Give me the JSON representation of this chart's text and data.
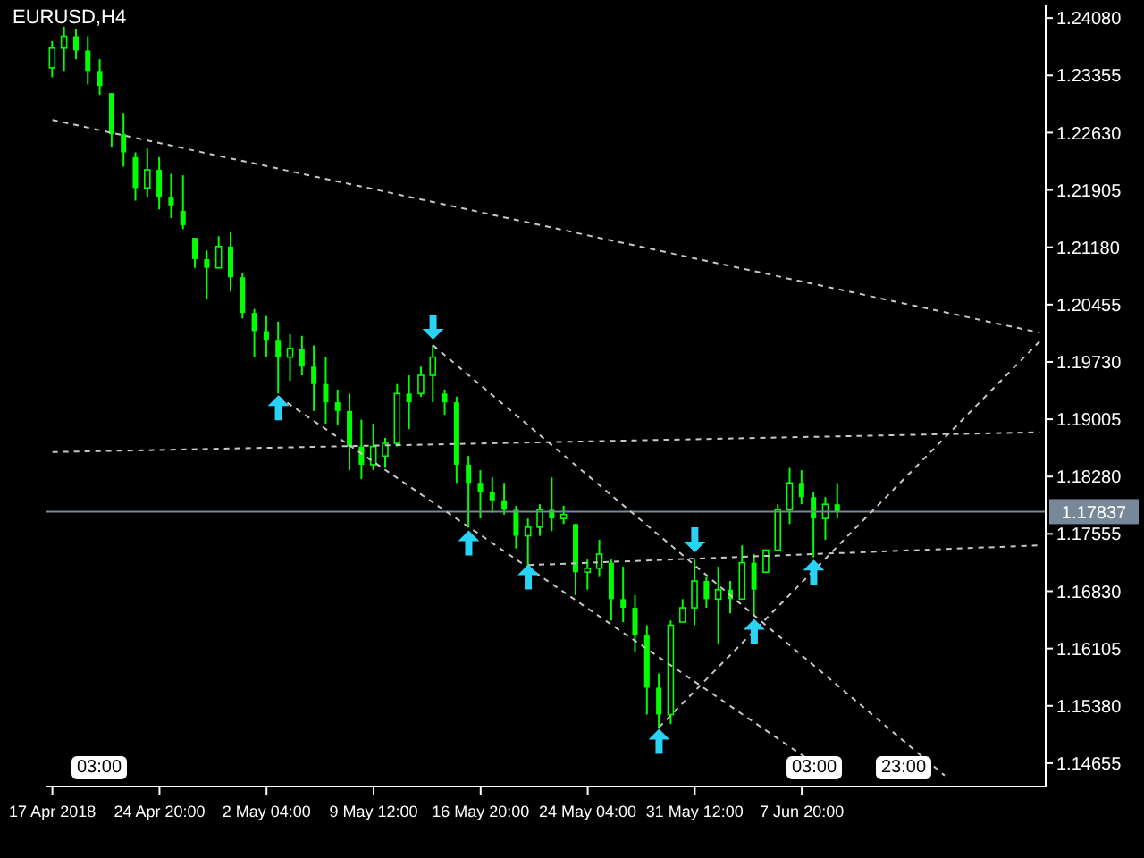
{
  "chart_data": {
    "type": "candlestick",
    "title": "EURUSD,H4",
    "color": "#00ff00",
    "categories": [
      "17 Apr 2018",
      null,
      null,
      null,
      null,
      null,
      null,
      null,
      null,
      "24 Apr 20:00",
      null,
      null,
      null,
      null,
      null,
      null,
      null,
      null,
      "2 May 04:00",
      null,
      null,
      null,
      null,
      null,
      null,
      null,
      null,
      "9 May 12:00",
      null,
      null,
      null,
      null,
      null,
      null,
      null,
      null,
      "16 May 20:00",
      null,
      null,
      null,
      null,
      null,
      null,
      null,
      null,
      "24 May 04:00",
      null,
      null,
      null,
      null,
      null,
      null,
      null,
      null,
      "31 May 12:00",
      null,
      null,
      null,
      null,
      null,
      null,
      null,
      null,
      "7 Jun 20:00",
      null,
      null,
      null,
      null,
      null,
      null,
      null,
      null,
      null,
      null,
      null,
      null,
      null,
      null,
      null,
      null,
      null,
      null,
      null,
      null
    ],
    "ohlc": [
      [
        1.2345,
        1.2379,
        1.2333,
        1.237
      ],
      [
        1.237,
        1.2397,
        1.234,
        1.2385
      ],
      [
        1.2385,
        1.2394,
        1.2356,
        1.2367
      ],
      [
        1.2367,
        1.2385,
        1.2324,
        1.234
      ],
      [
        1.234,
        1.2356,
        1.2311,
        1.2322
      ],
      [
        1.2313,
        1.2313,
        1.2245,
        1.2261
      ],
      [
        1.2261,
        1.2288,
        1.222,
        1.2238
      ],
      [
        1.2232,
        1.2238,
        1.2177,
        1.2193
      ],
      [
        1.2193,
        1.2243,
        1.2182,
        1.2216
      ],
      [
        1.2216,
        1.2232,
        1.2166,
        1.2182
      ],
      [
        1.2182,
        1.2211,
        1.2155,
        1.2171
      ],
      [
        1.2164,
        1.2209,
        1.2141,
        1.2146
      ],
      [
        1.213,
        1.213,
        1.2092,
        1.2103
      ],
      [
        1.2103,
        1.2114,
        1.2053,
        1.2092
      ],
      [
        1.2092,
        1.2132,
        1.2092,
        1.2119
      ],
      [
        1.2119,
        1.2137,
        1.2062,
        1.208
      ],
      [
        1.208,
        1.2085,
        1.2028,
        1.2035
      ],
      [
        1.2035,
        1.204,
        1.1979,
        1.2012
      ],
      [
        1.2012,
        1.2031,
        1.1979,
        1.2001
      ],
      [
        1.2001,
        1.2024,
        1.1933,
        1.1979
      ],
      [
        1.1979,
        1.2008,
        1.1949,
        1.199
      ],
      [
        1.199,
        1.2006,
        1.1956,
        1.1967
      ],
      [
        1.1967,
        1.1994,
        1.1911,
        1.1945
      ],
      [
        1.1945,
        1.1979,
        1.1895,
        1.1922
      ],
      [
        1.1922,
        1.1938,
        1.1893,
        1.1911
      ],
      [
        1.1911,
        1.1933,
        1.1836,
        1.1866
      ],
      [
        1.1866,
        1.19,
        1.1825,
        1.1843
      ],
      [
        1.1843,
        1.1895,
        1.1836,
        1.1866
      ],
      [
        1.1854,
        1.1877,
        1.1839,
        1.187
      ],
      [
        1.187,
        1.1945,
        1.1866,
        1.1933
      ],
      [
        1.1933,
        1.1956,
        1.1888,
        1.1922
      ],
      [
        1.1933,
        1.1967,
        1.1929,
        1.1956
      ],
      [
        1.1956,
        1.1994,
        1.1922,
        1.1979
      ],
      [
        1.1933,
        1.1938,
        1.1906,
        1.1922
      ],
      [
        1.1922,
        1.1929,
        1.182,
        1.1843
      ],
      [
        1.1843,
        1.1854,
        1.1764,
        1.182
      ],
      [
        1.182,
        1.1836,
        1.1775,
        1.1809
      ],
      [
        1.1809,
        1.1827,
        1.1782,
        1.1798
      ],
      [
        1.1798,
        1.182,
        1.178,
        1.1786
      ],
      [
        1.1786,
        1.1791,
        1.1737,
        1.1753
      ],
      [
        1.1753,
        1.1775,
        1.1714,
        1.1764
      ],
      [
        1.1764,
        1.1793,
        1.1753,
        1.1786
      ],
      [
        1.1786,
        1.1827,
        1.1759,
        1.1775
      ],
      [
        1.1775,
        1.1791,
        1.1768,
        1.178
      ],
      [
        1.1768,
        1.1768,
        1.1678,
        1.1707
      ],
      [
        1.1707,
        1.1723,
        1.1685,
        1.1712
      ],
      [
        1.1712,
        1.1748,
        1.1701,
        1.173
      ],
      [
        1.1719,
        1.1723,
        1.1646,
        1.1673
      ],
      [
        1.1673,
        1.1714,
        1.1644,
        1.1662
      ],
      [
        1.1662,
        1.1678,
        1.1606,
        1.1628
      ],
      [
        1.1628,
        1.164,
        1.1527,
        1.1561
      ],
      [
        1.1561,
        1.1579,
        1.1509,
        1.1527
      ],
      [
        1.1527,
        1.1646,
        1.1515,
        1.164
      ],
      [
        1.1644,
        1.1673,
        1.1644,
        1.1662
      ],
      [
        1.1662,
        1.1723,
        1.164,
        1.1696
      ],
      [
        1.1696,
        1.1701,
        1.1662,
        1.1673
      ],
      [
        1.1673,
        1.1714,
        1.1617,
        1.1685
      ],
      [
        1.1685,
        1.1696,
        1.1655,
        1.1673
      ],
      [
        1.1673,
        1.1741,
        1.1673,
        1.1719
      ],
      [
        1.1719,
        1.173,
        1.1651,
        1.1685
      ],
      [
        1.1707,
        1.1735,
        1.1707,
        1.1735
      ],
      [
        1.1735,
        1.1793,
        1.1735,
        1.1786
      ],
      [
        1.1786,
        1.1839,
        1.1768,
        1.182
      ],
      [
        1.182,
        1.1836,
        1.1793,
        1.1802
      ],
      [
        1.1802,
        1.1809,
        1.1726,
        1.1775
      ],
      [
        1.1775,
        1.1802,
        1.1748,
        1.1793
      ],
      [
        1.1793,
        1.182,
        1.1775,
        1.1784
      ],
      null,
      null,
      null,
      null,
      null,
      null,
      null,
      null,
      null,
      null,
      null,
      null,
      null,
      null,
      null,
      null,
      null
    ],
    "series": [
      {
        "type": "scatter",
        "color": "#29d3f5",
        "values": [
          null,
          null,
          null,
          null,
          null,
          null,
          null,
          null,
          null,
          null,
          null,
          null,
          null,
          null,
          null,
          null,
          null,
          null,
          null,
          1.1915,
          null,
          null,
          null,
          null,
          null,
          null,
          null,
          null,
          null,
          null,
          null,
          null,
          null,
          null,
          null,
          1.1744,
          null,
          null,
          null,
          null,
          1.1701,
          null,
          null,
          null,
          null,
          null,
          null,
          null,
          null,
          null,
          null,
          1.1493,
          null,
          null,
          null,
          null,
          null,
          null,
          null,
          1.1632,
          null,
          null,
          null,
          null,
          1.1707,
          null,
          null,
          null,
          null,
          null,
          null,
          null,
          null,
          null,
          null,
          null,
          null,
          null,
          null,
          null,
          null,
          null,
          null,
          null
        ]
      },
      {
        "type": "scatter",
        "color": "#29d3f5",
        "values": [
          null,
          null,
          null,
          null,
          null,
          null,
          null,
          null,
          null,
          null,
          null,
          null,
          null,
          null,
          null,
          null,
          null,
          null,
          null,
          null,
          null,
          null,
          null,
          null,
          null,
          null,
          null,
          null,
          null,
          null,
          null,
          null,
          1.2017,
          null,
          null,
          null,
          null,
          null,
          null,
          null,
          null,
          null,
          null,
          null,
          null,
          null,
          null,
          null,
          null,
          null,
          null,
          null,
          null,
          null,
          1.1748,
          null,
          null,
          null,
          null,
          null,
          null,
          null,
          null,
          null,
          null,
          null,
          null,
          null,
          null,
          null,
          null,
          null,
          null,
          null,
          null,
          null,
          null,
          null,
          null,
          null,
          null,
          null,
          null,
          null
        ]
      },
      {
        "type": "line",
        "color": "#c8c8c8",
        "line_style": "dashed",
        "values": [
          1.2279,
          null,
          null,
          null,
          null,
          null,
          null,
          null,
          null,
          null,
          null,
          null,
          null,
          null,
          null,
          null,
          null,
          null,
          null,
          null,
          null,
          null,
          null,
          null,
          null,
          null,
          null,
          null,
          null,
          null,
          null,
          null,
          null,
          null,
          null,
          null,
          null,
          null,
          null,
          null,
          null,
          null,
          null,
          null,
          null,
          null,
          null,
          null,
          null,
          null,
          null,
          null,
          null,
          null,
          null,
          null,
          null,
          null,
          null,
          null,
          null,
          null,
          null,
          null,
          null,
          null,
          null,
          null,
          null,
          null,
          null,
          null,
          null,
          null,
          null,
          null,
          null,
          null,
          null,
          null,
          null,
          null,
          null,
          1.201
        ]
      },
      {
        "type": "line",
        "color": "#c8c8c8",
        "line_style": "dashed",
        "values": [
          1.1859,
          null,
          null,
          null,
          null,
          null,
          null,
          null,
          null,
          null,
          null,
          null,
          null,
          null,
          null,
          null,
          null,
          null,
          null,
          null,
          null,
          null,
          null,
          null,
          null,
          null,
          null,
          null,
          null,
          null,
          null,
          null,
          null,
          null,
          null,
          null,
          null,
          null,
          null,
          null,
          null,
          null,
          null,
          null,
          null,
          null,
          null,
          null,
          null,
          null,
          null,
          null,
          null,
          null,
          null,
          null,
          null,
          null,
          null,
          null,
          null,
          null,
          null,
          null,
          null,
          null,
          null,
          null,
          null,
          null,
          null,
          null,
          null,
          null,
          null,
          null,
          null,
          null,
          null,
          null,
          null,
          null,
          null,
          1.1884
        ]
      },
      {
        "type": "line",
        "color": "#c8c8c8",
        "line_style": "dashed",
        "values": [
          null,
          null,
          null,
          null,
          null,
          null,
          null,
          null,
          null,
          null,
          null,
          null,
          null,
          null,
          null,
          null,
          null,
          null,
          null,
          1.1929,
          null,
          null,
          null,
          null,
          null,
          null,
          null,
          null,
          null,
          null,
          null,
          null,
          null,
          null,
          null,
          null,
          null,
          null,
          null,
          null,
          null,
          null,
          null,
          null,
          null,
          null,
          null,
          null,
          null,
          null,
          null,
          null,
          null,
          null,
          null,
          null,
          null,
          null,
          null,
          null,
          null,
          null,
          null,
          null,
          null,
          null,
          1.1445,
          null,
          null,
          null,
          null,
          null,
          null,
          null,
          null,
          null,
          null,
          null,
          null,
          null,
          null,
          null,
          null,
          null
        ]
      },
      {
        "type": "line",
        "color": "#c8c8c8",
        "line_style": "dashed",
        "values": [
          null,
          null,
          null,
          null,
          null,
          null,
          null,
          null,
          null,
          null,
          null,
          null,
          null,
          null,
          null,
          null,
          null,
          null,
          null,
          null,
          null,
          null,
          null,
          null,
          null,
          null,
          null,
          null,
          null,
          null,
          null,
          null,
          1.1994,
          null,
          null,
          null,
          null,
          null,
          null,
          null,
          null,
          null,
          null,
          null,
          null,
          null,
          null,
          null,
          null,
          null,
          null,
          null,
          null,
          null,
          null,
          null,
          null,
          null,
          null,
          null,
          null,
          null,
          null,
          null,
          null,
          null,
          null,
          null,
          null,
          null,
          null,
          null,
          null,
          null,
          null,
          1.145,
          null,
          null,
          null,
          null,
          null,
          null,
          null,
          null
        ]
      },
      {
        "type": "line",
        "color": "#c8c8c8",
        "line_style": "dashed",
        "values": [
          null,
          null,
          null,
          null,
          null,
          null,
          null,
          null,
          null,
          null,
          null,
          null,
          null,
          null,
          null,
          null,
          null,
          null,
          null,
          null,
          null,
          null,
          null,
          null,
          null,
          null,
          null,
          null,
          null,
          null,
          null,
          null,
          null,
          null,
          null,
          null,
          null,
          null,
          null,
          null,
          1.1716,
          null,
          null,
          null,
          null,
          null,
          null,
          null,
          null,
          null,
          null,
          null,
          null,
          null,
          null,
          null,
          null,
          null,
          null,
          null,
          null,
          null,
          null,
          null,
          null,
          null,
          null,
          null,
          null,
          null,
          null,
          null,
          null,
          null,
          null,
          null,
          null,
          null,
          null,
          null,
          null,
          null,
          null,
          1.1741
        ]
      },
      {
        "type": "line",
        "color": "#c8c8c8",
        "line_style": "dashed",
        "values": [
          null,
          null,
          null,
          null,
          null,
          null,
          null,
          null,
          null,
          null,
          null,
          null,
          null,
          null,
          null,
          null,
          null,
          null,
          null,
          null,
          null,
          null,
          null,
          null,
          null,
          null,
          null,
          null,
          null,
          null,
          null,
          null,
          null,
          null,
          null,
          null,
          null,
          null,
          null,
          null,
          null,
          null,
          null,
          null,
          null,
          null,
          null,
          null,
          null,
          null,
          null,
          1.1511,
          null,
          null,
          null,
          null,
          null,
          null,
          null,
          null,
          null,
          null,
          null,
          null,
          null,
          null,
          null,
          null,
          null,
          null,
          null,
          null,
          null,
          null,
          null,
          null,
          null,
          null,
          null,
          null,
          null,
          null,
          null,
          1.1999
        ]
      }
    ],
    "ylim": [
      1.1436,
      1.2424
    ],
    "yticks": [
      {
        "value": 1.2408,
        "label": "1.24080"
      },
      {
        "value": 1.23355,
        "label": "1.23355"
      },
      {
        "value": 1.2263,
        "label": "1.22630"
      },
      {
        "value": 1.21905,
        "label": "1.21905"
      },
      {
        "value": 1.2118,
        "label": "1.21180"
      },
      {
        "value": 1.20455,
        "label": "1.20455"
      },
      {
        "value": 1.1973,
        "label": "1.19730"
      },
      {
        "value": 1.19005,
        "label": "1.19005"
      },
      {
        "value": 1.1828,
        "label": "1.18280"
      },
      {
        "value": 1.17555,
        "label": "1.17555"
      },
      {
        "value": 1.1683,
        "label": "1.16830"
      },
      {
        "value": 1.16105,
        "label": "1.16105"
      },
      {
        "value": 1.1538,
        "label": "1.15380"
      },
      {
        "value": 1.14655,
        "label": "1.14655"
      }
    ],
    "ref_lines": [
      {
        "axis": "y",
        "value": 1.17837,
        "label": "1.17837",
        "color": "#778899",
        "line_style": "solid"
      }
    ],
    "annotations": [
      "03:00",
      "03:00",
      "23:00"
    ]
  }
}
